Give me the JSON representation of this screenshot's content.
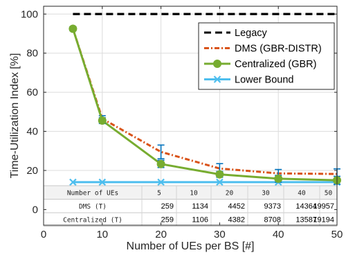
{
  "chart_data": {
    "type": "line",
    "xlabel": "Number of UEs per BS [#]",
    "ylabel": "Time-Utilization Index [%]",
    "xlim": [
      0,
      50
    ],
    "ylim": [
      -8,
      104
    ],
    "xticks": [
      "0",
      "10",
      "20",
      "30",
      "40",
      "50"
    ],
    "yticks": [
      "0",
      "20",
      "40",
      "60",
      "80",
      "100"
    ],
    "grid": true,
    "legend_position": "top-right",
    "series": [
      {
        "name": "Legacy",
        "color": "#000000",
        "style": "dashed",
        "x": [
          5,
          10,
          20,
          30,
          40,
          50
        ],
        "values": [
          100,
          100,
          100,
          100,
          100,
          100
        ]
      },
      {
        "name": "DMS (GBR-DISTR)",
        "color": "#d95319",
        "style": "dashdot",
        "x": [
          5,
          10,
          20,
          30,
          40,
          50
        ],
        "values": [
          92.5,
          46.5,
          29.5,
          21,
          18.5,
          18.2
        ],
        "error_low": [
          91.5,
          45,
          26,
          18.5,
          16,
          15.5
        ],
        "error_high": [
          93.5,
          48,
          33,
          23.5,
          20.5,
          20.8
        ]
      },
      {
        "name": "Centralized (GBR)",
        "color": "#77ac30",
        "style": "solid",
        "marker": "circle",
        "x": [
          5,
          10,
          20,
          30,
          40,
          50
        ],
        "values": [
          92.5,
          45.5,
          23.3,
          18,
          15.8,
          15
        ],
        "error_low": [
          91.5,
          44,
          21.5,
          16.5,
          14,
          13
        ],
        "error_high": [
          93.5,
          47,
          25.2,
          19.5,
          17.5,
          17
        ]
      },
      {
        "name": "Lower Bound",
        "color": "#4dbeee",
        "style": "solid",
        "marker": "x",
        "x": [
          5,
          10,
          20,
          30,
          40,
          50
        ],
        "values": [
          14,
          14,
          14,
          14,
          14,
          14
        ]
      }
    ]
  },
  "table": {
    "header_label": "Number of UEs",
    "columns": [
      "5",
      "10",
      "20",
      "30",
      "40",
      "50"
    ],
    "rows": [
      {
        "label": "DMS (T)",
        "values": [
          "259",
          "1134",
          "4452",
          "9373",
          "14364",
          "19957"
        ]
      },
      {
        "label": "Centralized (T)",
        "values": [
          "259",
          "1106",
          "4382",
          "8708",
          "13587",
          "19194"
        ]
      }
    ]
  }
}
